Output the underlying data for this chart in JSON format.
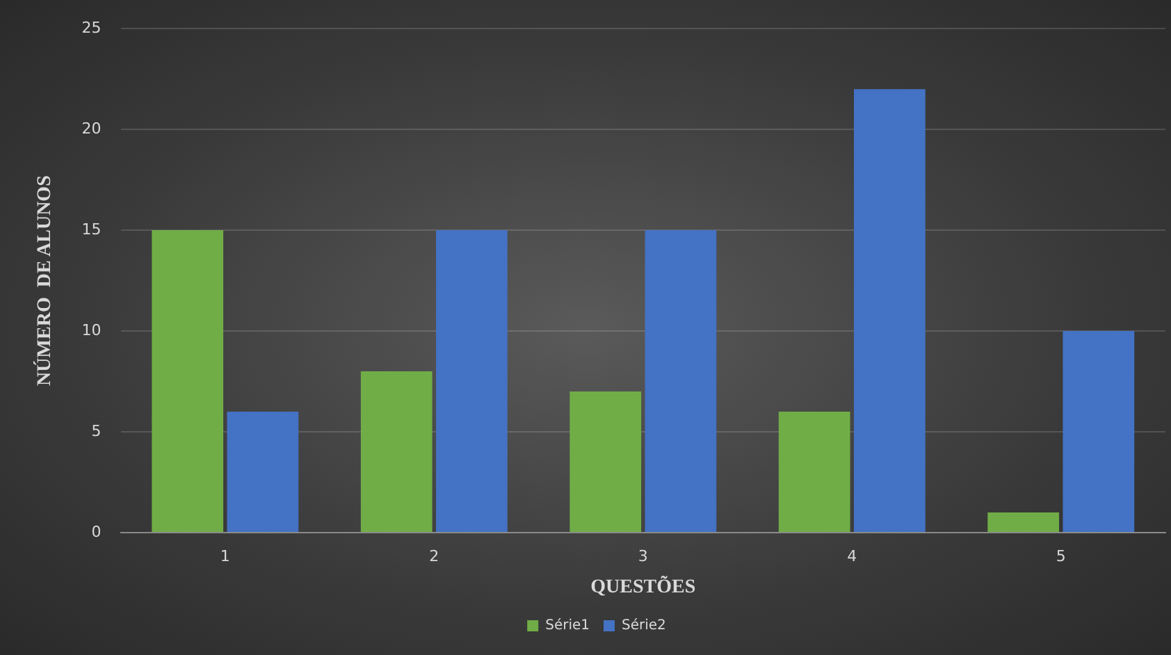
{
  "chart_data": {
    "type": "bar",
    "xlabel": "QUESTÕES",
    "ylabel": "NÚMERO  DE ALUNOS",
    "categories": [
      "1",
      "2",
      "3",
      "4",
      "5"
    ],
    "series": [
      {
        "name": "Série1",
        "color": "#70ad47",
        "values": [
          15,
          8,
          7,
          6,
          1
        ]
      },
      {
        "name": "Série2",
        "color": "#4472c4",
        "values": [
          6,
          15,
          15,
          22,
          10
        ]
      }
    ],
    "ylim": [
      0,
      25
    ],
    "yticks": [
      0,
      5,
      10,
      15,
      20,
      25
    ],
    "grid": "y",
    "legend": "bottom"
  }
}
